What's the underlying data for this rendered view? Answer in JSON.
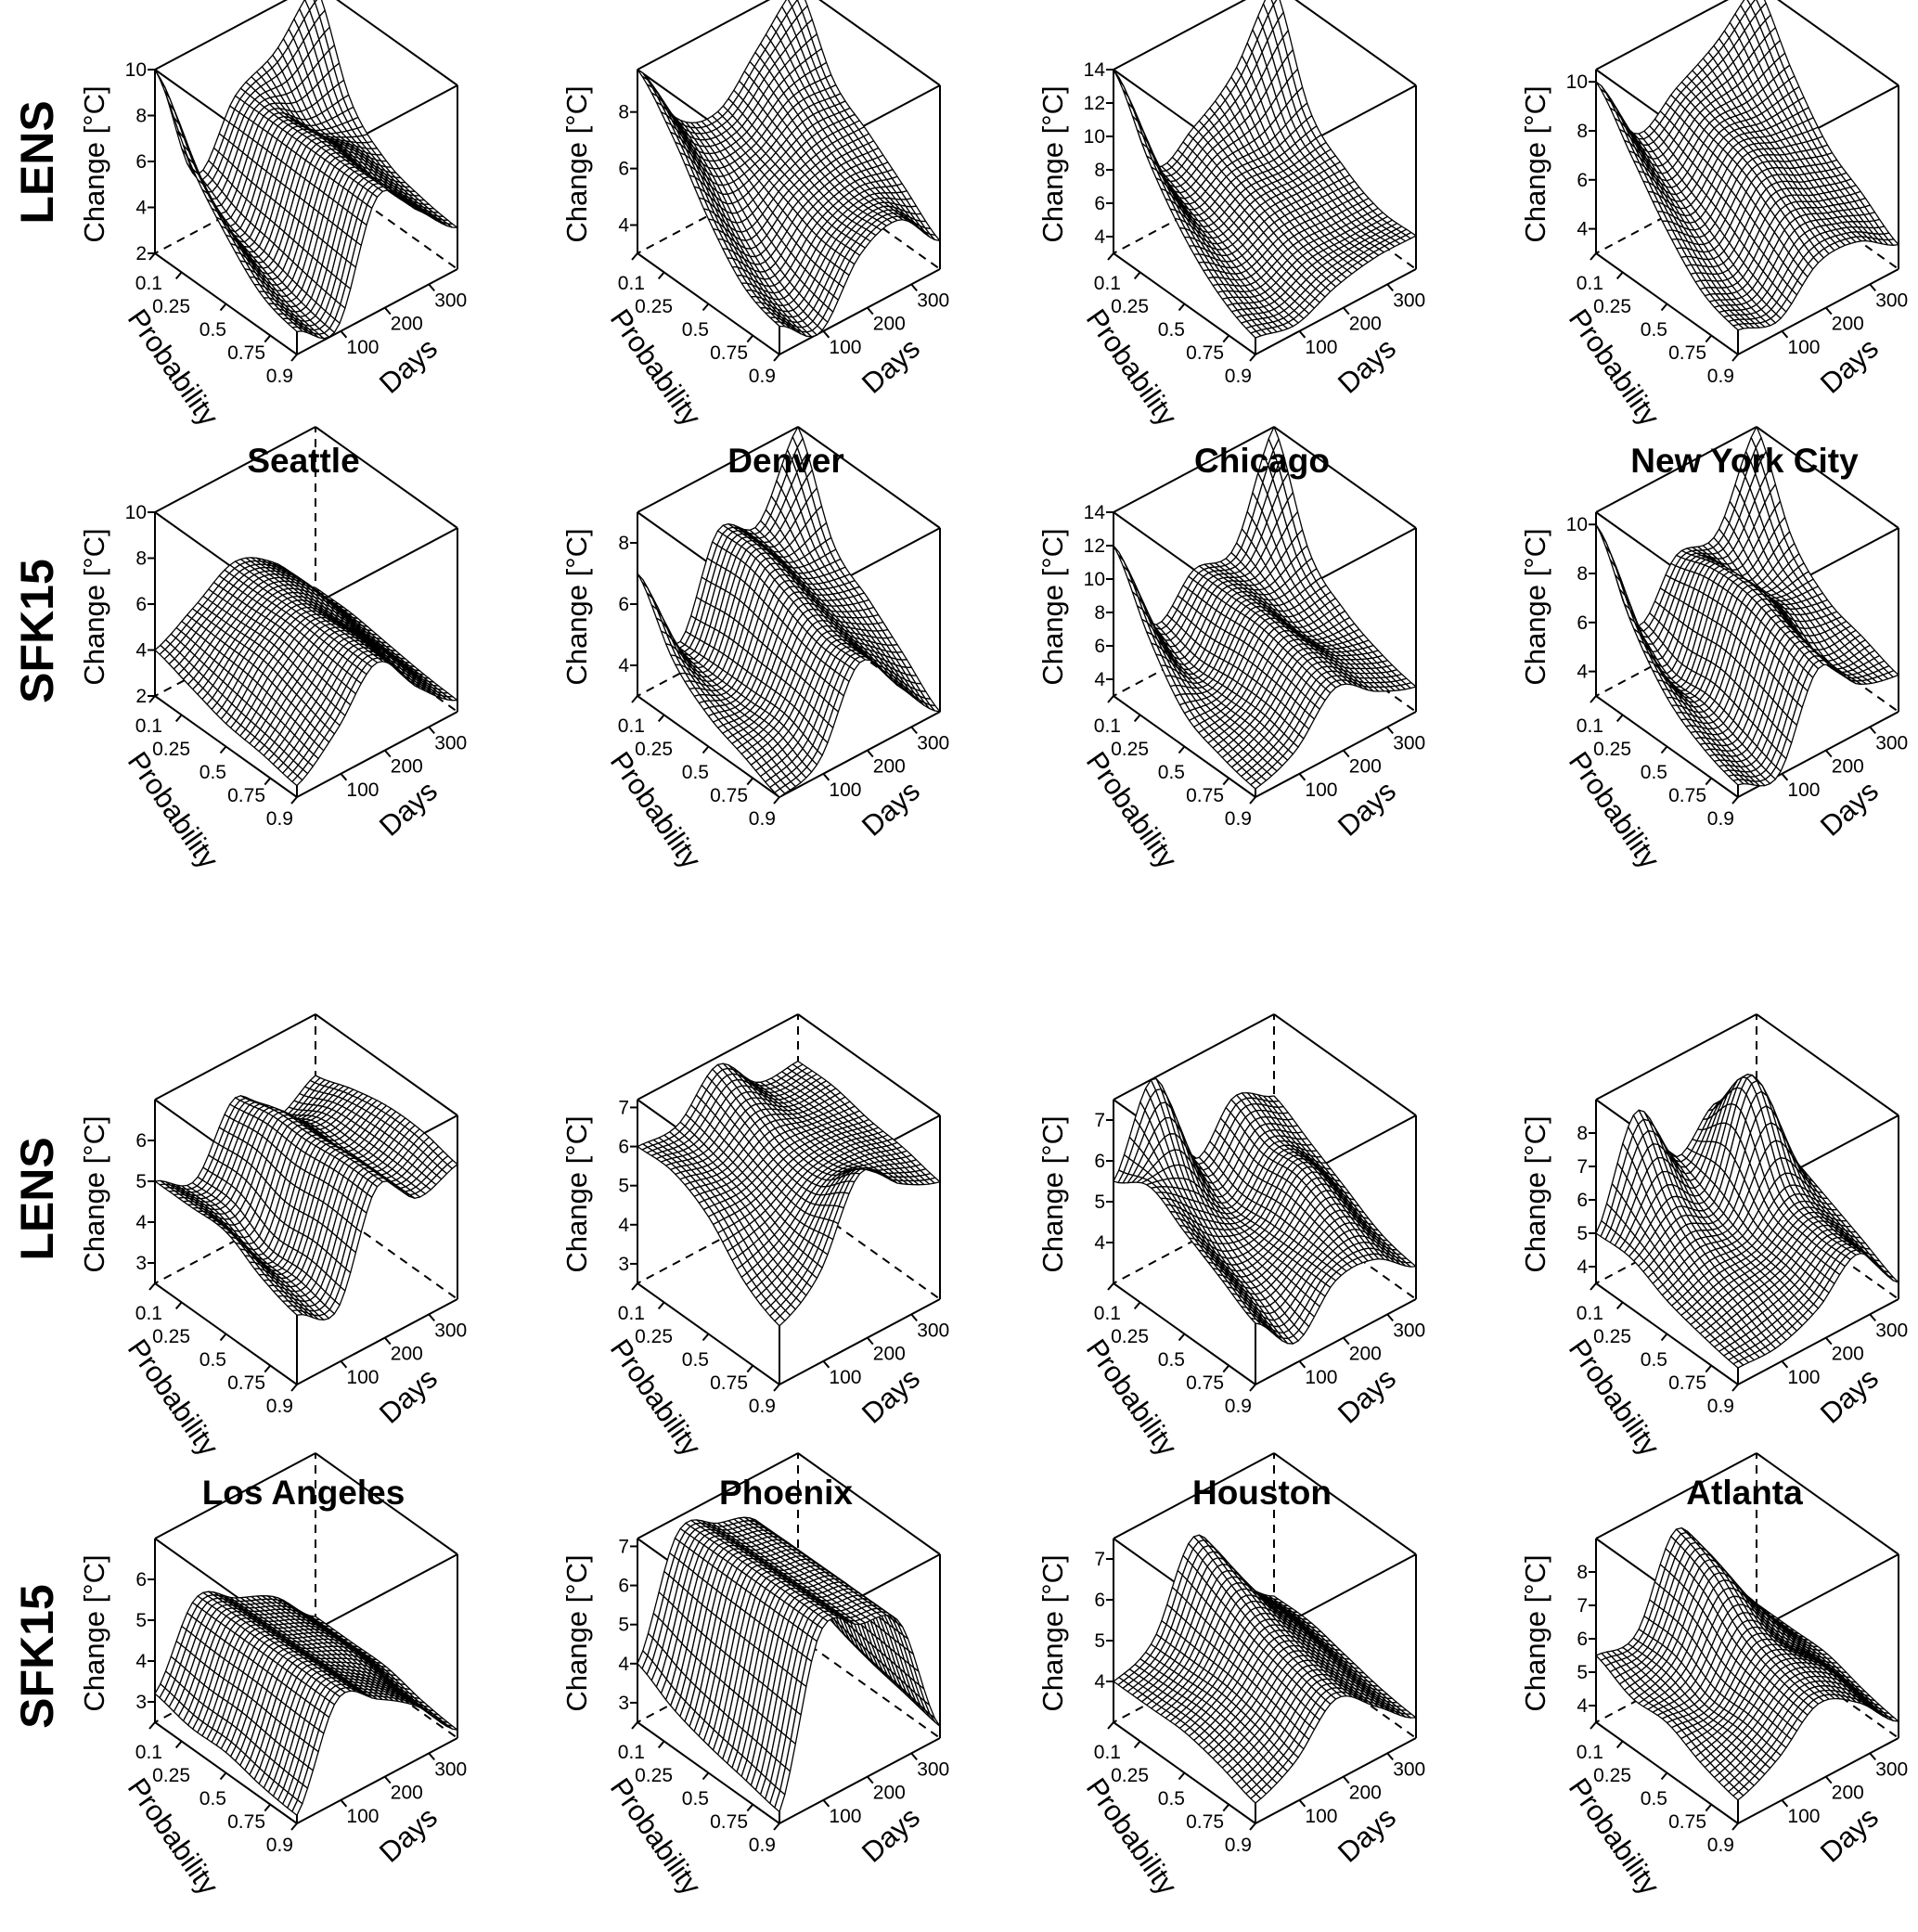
{
  "row_labels": [
    "LENS",
    "SFK15",
    "LENS",
    "SFK15"
  ],
  "city_titles": [
    "Seattle",
    "Denver",
    "Chicago",
    "New York City",
    "Los Angeles",
    "Phoenix",
    "Houston",
    "Atlanta"
  ],
  "chart_data": {
    "type": "surface3d-grid",
    "zlabel": "Change [°C]",
    "xlabel": "Probability",
    "ylabel": "Days",
    "probability_ticks": [
      "0.1",
      "0.25",
      "0.5",
      "0.75",
      "0.9"
    ],
    "days_ticks": [
      "100",
      "200",
      "300"
    ],
    "probabilities": [
      0.1,
      0.25,
      0.5,
      0.75,
      0.9
    ],
    "days": [
      1,
      90,
      180,
      270,
      365
    ],
    "panels": [
      {
        "model": "LENS",
        "city": "Seattle",
        "zlim": [
          2,
          10
        ],
        "z_ticks": [
          2,
          4,
          6,
          8,
          10
        ],
        "z": [
          [
            10,
            4.5,
            7,
            8,
            10
          ],
          [
            7,
            3.5,
            7,
            6,
            6
          ],
          [
            5,
            3,
            7,
            6,
            4.5
          ],
          [
            3.5,
            2.5,
            7,
            5.5,
            4
          ],
          [
            3,
            2.2,
            7,
            5.5,
            3.8
          ]
        ]
      },
      {
        "model": "LENS",
        "city": "Denver",
        "zlim": [
          3,
          9.5
        ],
        "z_ticks": [
          4,
          6,
          8
        ],
        "z": [
          [
            9.5,
            7,
            6.5,
            8,
            9.5
          ],
          [
            8,
            6,
            6,
            7,
            7
          ],
          [
            6,
            4.5,
            5.5,
            6,
            6
          ],
          [
            4.5,
            3.5,
            5,
            5.5,
            5
          ],
          [
            4,
            3,
            5,
            5.5,
            4
          ]
        ]
      },
      {
        "model": "LENS",
        "city": "Chicago",
        "zlim": [
          3,
          14
        ],
        "z_ticks": [
          4,
          6,
          8,
          10,
          12,
          14
        ],
        "z": [
          [
            14,
            7,
            8,
            10,
            14
          ],
          [
            10,
            6,
            7,
            7,
            8
          ],
          [
            7,
            5,
            6,
            6,
            6
          ],
          [
            5,
            4,
            5,
            5,
            5
          ],
          [
            4,
            3.5,
            4.5,
            5,
            5
          ]
        ]
      },
      {
        "model": "LENS",
        "city": "New York City",
        "zlim": [
          3,
          10.5
        ],
        "z_ticks": [
          4,
          6,
          8,
          10
        ],
        "z": [
          [
            10,
            7,
            8,
            9,
            10.5
          ],
          [
            8,
            6,
            7.5,
            7.5,
            8
          ],
          [
            6,
            5,
            7,
            6.5,
            6
          ],
          [
            4.5,
            4,
            6,
            5.5,
            5
          ],
          [
            4,
            3.5,
            5,
            5,
            4
          ]
        ]
      },
      {
        "model": "SFK15",
        "city": "Seattle",
        "zlim": [
          2,
          10
        ],
        "z_ticks": [
          2,
          4,
          6,
          8,
          10
        ],
        "z": [
          [
            4,
            5,
            6,
            5,
            3
          ],
          [
            3.5,
            5,
            6,
            5,
            3
          ],
          [
            3,
            5,
            6,
            4.5,
            2.8
          ],
          [
            2.8,
            4.5,
            6,
            4.5,
            2.6
          ],
          [
            2.5,
            4,
            6,
            4,
            2.5
          ]
        ]
      },
      {
        "model": "SFK15",
        "city": "Denver",
        "zlim": [
          3,
          9
        ],
        "z_ticks": [
          4,
          6,
          8
        ],
        "z": [
          [
            7,
            4,
            7,
            6.5,
            9
          ],
          [
            5,
            4,
            7,
            6,
            6
          ],
          [
            4,
            4,
            6.5,
            5.5,
            5
          ],
          [
            3.5,
            4,
            6,
            5,
            4
          ],
          [
            3,
            3.5,
            6,
            4.5,
            3
          ]
        ]
      },
      {
        "model": "SFK15",
        "city": "Chicago",
        "zlim": [
          3,
          14
        ],
        "z_ticks": [
          4,
          6,
          8,
          10,
          12,
          14
        ],
        "z": [
          [
            12,
            6,
            8,
            8,
            14
          ],
          [
            8,
            5,
            8,
            7,
            8
          ],
          [
            5,
            5,
            8,
            6,
            6
          ],
          [
            4,
            5,
            7.5,
            6,
            5
          ],
          [
            3.5,
            4.5,
            7,
            5.5,
            4.5
          ]
        ]
      },
      {
        "model": "SFK15",
        "city": "New York City",
        "zlim": [
          3,
          10.5
        ],
        "z_ticks": [
          4,
          6,
          8,
          10
        ],
        "z": [
          [
            10,
            5,
            7,
            7,
            10.5
          ],
          [
            7,
            4,
            7.5,
            6,
            7
          ],
          [
            5,
            4,
            7.5,
            6,
            5.5
          ],
          [
            4,
            3.5,
            7,
            5,
            5
          ],
          [
            3.5,
            3,
            6.5,
            5,
            4.5
          ]
        ]
      },
      {
        "model": "LENS",
        "city": "Los Angeles",
        "zlim": [
          2.5,
          7
        ],
        "z_ticks": [
          3,
          4,
          5,
          6
        ],
        "z": [
          [
            5,
            4.5,
            6,
            5,
            5.5
          ],
          [
            5,
            4.5,
            6.2,
            5.5,
            5.8
          ],
          [
            5,
            4,
            6.2,
            5.5,
            6
          ],
          [
            4.5,
            4,
            6.3,
            5.5,
            6
          ],
          [
            4.2,
            3.8,
            6.3,
            5.5,
            5.8
          ]
        ]
      },
      {
        "model": "LENS",
        "city": "Phoenix",
        "zlim": [
          2.5,
          7.2
        ],
        "z_ticks": [
          3,
          4,
          5,
          6,
          7
        ],
        "z": [
          [
            6,
            6,
            7,
            6,
            6
          ],
          [
            6,
            5.8,
            6.5,
            6,
            6
          ],
          [
            5.5,
            5.5,
            6,
            6,
            5.8
          ],
          [
            4.5,
            5,
            6,
            6,
            5.7
          ],
          [
            4,
            4.8,
            6.8,
            6,
            5.5
          ]
        ]
      },
      {
        "model": "LENS",
        "city": "Houston",
        "zlim": [
          3,
          7.5
        ],
        "z_ticks": [
          4,
          5,
          6,
          7
        ],
        "z": [
          [
            5.5,
            7.5,
            5,
            6,
            5.5
          ],
          [
            6,
            5.5,
            4.5,
            5.5,
            5
          ],
          [
            5.5,
            4.5,
            4.5,
            5.5,
            4.5
          ],
          [
            5,
            4,
            4.5,
            5,
            4
          ],
          [
            4.5,
            3.5,
            4.5,
            4.5,
            3.8
          ]
        ]
      },
      {
        "model": "LENS",
        "city": "Atlanta",
        "zlim": [
          3.5,
          9
        ],
        "z_ticks": [
          4,
          5,
          6,
          7,
          8
        ],
        "z": [
          [
            5,
            8,
            6,
            7,
            6
          ],
          [
            5,
            6,
            5.5,
            8.5,
            5.5
          ],
          [
            4.5,
            5,
            5,
            6,
            5
          ],
          [
            4.2,
            4.5,
            4.8,
            5.5,
            4.5
          ],
          [
            4,
            4,
            4.5,
            5.5,
            4
          ]
        ]
      },
      {
        "model": "SFK15",
        "city": "Los Angeles",
        "zlim": [
          2.5,
          7
        ],
        "z_ticks": [
          3,
          4,
          5,
          6
        ],
        "z": [
          [
            3.2,
            5,
            4.5,
            4,
            3
          ],
          [
            3,
            5,
            4.5,
            4,
            3
          ],
          [
            3,
            5,
            4.5,
            4,
            3
          ],
          [
            2.8,
            5,
            4.5,
            3.8,
            2.8
          ],
          [
            2.7,
            5,
            4.5,
            3.8,
            2.7
          ]
        ]
      },
      {
        "model": "SFK15",
        "city": "Phoenix",
        "zlim": [
          2.5,
          7.2
        ],
        "z_ticks": [
          3,
          4,
          5,
          6,
          7
        ],
        "z": [
          [
            4,
            6.8,
            6.5,
            6,
            4
          ],
          [
            3.5,
            6.8,
            6.5,
            6,
            3.5
          ],
          [
            3.2,
            6.8,
            6.5,
            6,
            3.2
          ],
          [
            3,
            6.8,
            6.5,
            6,
            3
          ],
          [
            2.8,
            6.8,
            6.5,
            6,
            2.8
          ]
        ]
      },
      {
        "model": "SFK15",
        "city": "Houston",
        "zlim": [
          3,
          7.5
        ],
        "z_ticks": [
          4,
          5,
          6,
          7
        ],
        "z": [
          [
            4,
            4.5,
            6.5,
            5,
            4
          ],
          [
            4,
            4.5,
            6,
            5,
            4
          ],
          [
            4,
            4.5,
            5.5,
            4.8,
            3.8
          ],
          [
            3.8,
            4.3,
            5.2,
            4.5,
            3.6
          ],
          [
            3.5,
            4,
            5,
            4.3,
            3.5
          ]
        ]
      },
      {
        "model": "SFK15",
        "city": "Atlanta",
        "zlim": [
          3.5,
          9
        ],
        "z_ticks": [
          4,
          5,
          6,
          7,
          8
        ],
        "z": [
          [
            5.5,
            5.5,
            8,
            6,
            4.5
          ],
          [
            5,
            5.5,
            7.5,
            6,
            4.5
          ],
          [
            5,
            5,
            6.5,
            5.5,
            4.5
          ],
          [
            4.5,
            5,
            6,
            5.5,
            4.2
          ],
          [
            4.2,
            4.8,
            5.8,
            5.2,
            4
          ]
        ]
      }
    ]
  }
}
